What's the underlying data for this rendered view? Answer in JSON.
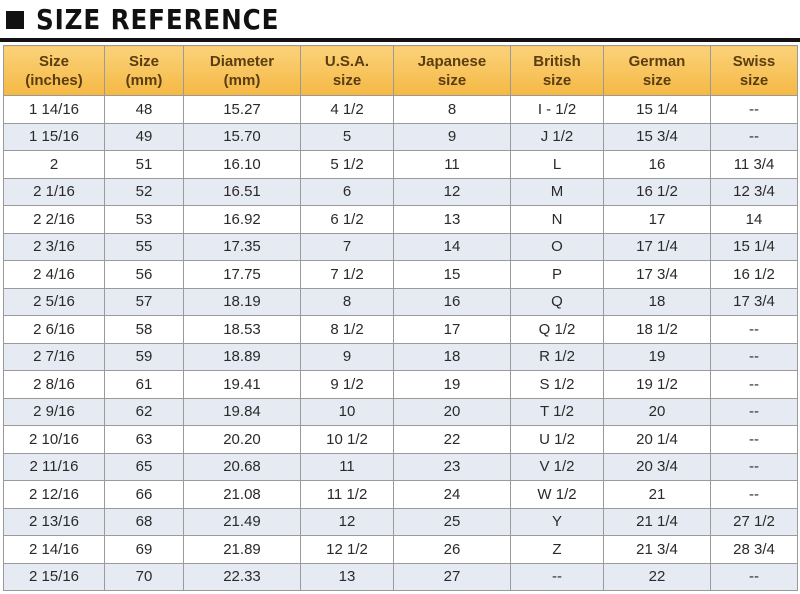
{
  "header": {
    "title": "SIZE REFERENCE"
  },
  "table": {
    "columns": [
      "Size\n(inches)",
      "Size\n(mm)",
      "Diameter\n(mm)",
      "U.S.A.\nsize",
      "Japanese\nsize",
      "British\nsize",
      "German\nsize",
      "Swiss\nsize"
    ],
    "rows": [
      [
        "1 14/16",
        "48",
        "15.27",
        "4 1/2",
        "8",
        "I - 1/2",
        "15 1/4",
        "--"
      ],
      [
        "1 15/16",
        "49",
        "15.70",
        "5",
        "9",
        "J 1/2",
        "15 3/4",
        "--"
      ],
      [
        "2",
        "51",
        "16.10",
        "5 1/2",
        "11",
        "L",
        "16",
        "11 3/4"
      ],
      [
        "2 1/16",
        "52",
        "16.51",
        "6",
        "12",
        "M",
        "16 1/2",
        "12 3/4"
      ],
      [
        "2 2/16",
        "53",
        "16.92",
        "6 1/2",
        "13",
        "N",
        "17",
        "14"
      ],
      [
        "2 3/16",
        "55",
        "17.35",
        "7",
        "14",
        "O",
        "17 1/4",
        "15 1/4"
      ],
      [
        "2 4/16",
        "56",
        "17.75",
        "7 1/2",
        "15",
        "P",
        "17 3/4",
        "16 1/2"
      ],
      [
        "2 5/16",
        "57",
        "18.19",
        "8",
        "16",
        "Q",
        "18",
        "17 3/4"
      ],
      [
        "2 6/16",
        "58",
        "18.53",
        "8 1/2",
        "17",
        "Q 1/2",
        "18 1/2",
        "--"
      ],
      [
        "2 7/16",
        "59",
        "18.89",
        "9",
        "18",
        "R 1/2",
        "19",
        "--"
      ],
      [
        "2 8/16",
        "61",
        "19.41",
        "9 1/2",
        "19",
        "S 1/2",
        "19 1/2",
        "--"
      ],
      [
        "2 9/16",
        "62",
        "19.84",
        "10",
        "20",
        "T 1/2",
        "20",
        "--"
      ],
      [
        "2 10/16",
        "63",
        "20.20",
        "10 1/2",
        "22",
        "U 1/2",
        "20 1/4",
        "--"
      ],
      [
        "2 11/16",
        "65",
        "20.68",
        "11",
        "23",
        "V 1/2",
        "20 3/4",
        "--"
      ],
      [
        "2 12/16",
        "66",
        "21.08",
        "11 1/2",
        "24",
        "W 1/2",
        "21",
        "--"
      ],
      [
        "2 13/16",
        "68",
        "21.49",
        "12",
        "25",
        "Y",
        "21 1/4",
        "27 1/2"
      ],
      [
        "2 14/16",
        "69",
        "21.89",
        "12 1/2",
        "26",
        "Z",
        "21 3/4",
        "28 3/4"
      ],
      [
        "2 15/16",
        "70",
        "22.33",
        "13",
        "27",
        "--",
        "22",
        "--"
      ]
    ]
  }
}
